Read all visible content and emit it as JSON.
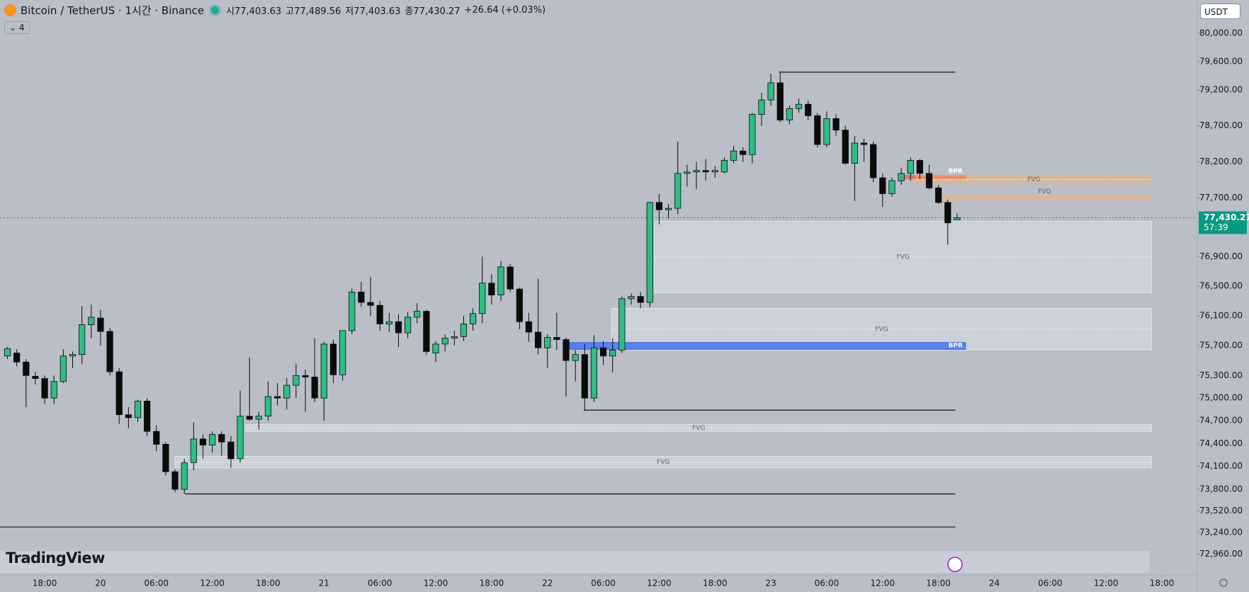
{
  "header": {
    "symbol": "Bitcoin / TetherUS · 1시간 · Binance",
    "ohlc": [
      "시77,403.63",
      "고77,489.56",
      "저77,403.63",
      "종77,430.27"
    ],
    "change": "+26.64 (+0.03%)",
    "indicator_count": "4",
    "currency": "USDT",
    "logo": "TradingView",
    "countdown": "57:39"
  },
  "chart_data": {
    "type": "candlestick",
    "log_scale": true,
    "up_color": "#2ebd85",
    "down_color": "#0b0b0b",
    "xlim": [
      -10.8,
      117.8
    ],
    "ylim": [
      72690,
      80470
    ],
    "xticks": [
      {
        "value": -6,
        "label": "18:00"
      },
      {
        "value": 0,
        "label": "20"
      },
      {
        "value": 6,
        "label": "06:00"
      },
      {
        "value": 12,
        "label": "12:00"
      },
      {
        "value": 18,
        "label": "18:00"
      },
      {
        "value": 24,
        "label": "21"
      },
      {
        "value": 30,
        "label": "06:00"
      },
      {
        "value": 36,
        "label": "12:00"
      },
      {
        "value": 42,
        "label": "18:00"
      },
      {
        "value": 48,
        "label": "22"
      },
      {
        "value": 54,
        "label": "06:00"
      },
      {
        "value": 60,
        "label": "12:00"
      },
      {
        "value": 66,
        "label": "18:00"
      },
      {
        "value": 72,
        "label": "23"
      },
      {
        "value": 78,
        "label": "06:00"
      },
      {
        "value": 84,
        "label": "12:00"
      },
      {
        "value": 90,
        "label": "18:00"
      },
      {
        "value": 96,
        "label": "24"
      },
      {
        "value": 102,
        "label": "06:00"
      },
      {
        "value": 108,
        "label": "12:00"
      },
      {
        "value": 114,
        "label": "18:00"
      }
    ],
    "yticks": [
      {
        "value": 80000,
        "label": "80,000.00"
      },
      {
        "value": 79600,
        "label": "79,600.00"
      },
      {
        "value": 79200,
        "label": "79,200.00"
      },
      {
        "value": 78700,
        "label": "78,700.00"
      },
      {
        "value": 78200,
        "label": "78,200.00"
      },
      {
        "value": 77700,
        "label": "77,700.00"
      },
      {
        "value": 76900,
        "label": "76,900.00"
      },
      {
        "value": 76500,
        "label": "76,500.00"
      },
      {
        "value": 76100,
        "label": "76,100.00"
      },
      {
        "value": 75700,
        "label": "75,700.00"
      },
      {
        "value": 75300,
        "label": "75,300.00"
      },
      {
        "value": 75000,
        "label": "75,000.00"
      },
      {
        "value": 74700,
        "label": "74,700.00"
      },
      {
        "value": 74400,
        "label": "74,400.00"
      },
      {
        "value": 74100,
        "label": "74,100.00"
      },
      {
        "value": 73800,
        "label": "73,800.00"
      },
      {
        "value": 73520,
        "label": "73,520.00"
      },
      {
        "value": 73240,
        "label": "73,240.00"
      },
      {
        "value": 72960,
        "label": "72,960.00"
      }
    ],
    "x": [
      -10,
      -9,
      -8,
      -7,
      -6,
      -5,
      -4,
      -3,
      -2,
      -1,
      0,
      1,
      2,
      3,
      4,
      5,
      6,
      7,
      8,
      9,
      10,
      11,
      12,
      13,
      14,
      15,
      16,
      17,
      18,
      19,
      20,
      21,
      22,
      23,
      24,
      25,
      26,
      27,
      28,
      29,
      30,
      31,
      32,
      33,
      34,
      35,
      36,
      37,
      38,
      39,
      40,
      41,
      42,
      43,
      44,
      45,
      46,
      47,
      48,
      49,
      50,
      51,
      52,
      53,
      54,
      55,
      56,
      57,
      58,
      59,
      60,
      61,
      62,
      63,
      64,
      65,
      66,
      67,
      68,
      69,
      70,
      71,
      72,
      73,
      74,
      75,
      76,
      77,
      78,
      79,
      80,
      81,
      82,
      83,
      84,
      85,
      86,
      87,
      88,
      89,
      90,
      91,
      92
    ],
    "open": [
      75560,
      75600,
      75480,
      75290,
      75260,
      75000,
      75220,
      75560,
      75580,
      75980,
      76070,
      75890,
      75350,
      74780,
      74740,
      74960,
      74560,
      74390,
      74030,
      73800,
      74150,
      74460,
      74380,
      74520,
      74420,
      74200,
      74760,
      74720,
      74760,
      75020,
      75000,
      75170,
      75300,
      75280,
      75000,
      75720,
      75310,
      75900,
      76420,
      76280,
      76240,
      75990,
      76020,
      75870,
      76080,
      76160,
      75600,
      75720,
      75800,
      75820,
      75990,
      76130,
      76540,
      76380,
      76760,
      76460,
      76020,
      75880,
      75670,
      75810,
      75780,
      75500,
      75580,
      75000,
      75670,
      75560,
      75640,
      76330,
      76360,
      76280,
      77640,
      77540,
      77560,
      78040,
      78060,
      78080,
      78060,
      78060,
      78220,
      78350,
      78300,
      78860,
      79060,
      79300,
      78780,
      78940,
      79000,
      78840,
      78440,
      78800,
      78640,
      78180,
      78460,
      78440,
      77980,
      77760,
      77940,
      78040,
      78220,
      78040,
      77840,
      77640,
      77403.63
    ],
    "high": [
      75680,
      75650,
      75520,
      75350,
      75300,
      75300,
      75650,
      75620,
      76230,
      76250,
      76180,
      75940,
      75400,
      74880,
      74980,
      75000,
      74640,
      74420,
      74060,
      74200,
      74680,
      74520,
      74560,
      74560,
      74500,
      75100,
      75540,
      74820,
      75220,
      75200,
      75270,
      75460,
      75380,
      75800,
      75750,
      75780,
      75900,
      76470,
      76560,
      76620,
      76300,
      76140,
      76120,
      76150,
      76270,
      76180,
      75760,
      75850,
      75900,
      76100,
      76200,
      76900,
      76660,
      76840,
      76800,
      76480,
      76140,
      76600,
      75850,
      76140,
      75810,
      75640,
      75720,
      75840,
      75760,
      75800,
      76360,
      76400,
      76420,
      77650,
      77760,
      77620,
      78480,
      78160,
      78200,
      78240,
      78140,
      78260,
      78420,
      78400,
      78880,
      79160,
      79430,
      79460,
      78980,
      79080,
      79050,
      78880,
      78900,
      78860,
      78700,
      78560,
      78520,
      78480,
      78040,
      77980,
      78120,
      78260,
      78240,
      78160,
      77880,
      77680,
      77489.56
    ],
    "low": [
      75520,
      75420,
      74880,
      75180,
      74920,
      74920,
      75200,
      75400,
      75450,
      75800,
      75700,
      75300,
      74660,
      74600,
      74680,
      74500,
      74300,
      73980,
      73760,
      73740,
      74050,
      74200,
      74280,
      74240,
      74080,
      74150,
      74700,
      74580,
      74700,
      74900,
      74850,
      75000,
      74820,
      74950,
      74700,
      75200,
      75230,
      75850,
      76220,
      76100,
      75900,
      75880,
      75680,
      75800,
      76000,
      75580,
      75480,
      75620,
      75700,
      75760,
      75900,
      76000,
      76250,
      76300,
      76420,
      75920,
      75750,
      75580,
      75400,
      75640,
      75020,
      75220,
      74840,
      74950,
      75440,
      75340,
      75600,
      76250,
      76200,
      76220,
      77340,
      77420,
      77480,
      77860,
      77820,
      77940,
      77980,
      78040,
      78180,
      78200,
      78180,
      78700,
      78980,
      78750,
      78720,
      78880,
      78780,
      78400,
      78400,
      78560,
      78160,
      77660,
      78200,
      77920,
      77580,
      77720,
      77880,
      77940,
      77960,
      77820,
      77620,
      77060,
      77403.63
    ],
    "close": [
      75660,
      75480,
      75300,
      75260,
      75000,
      75220,
      75560,
      75580,
      75980,
      76080,
      75890,
      75350,
      74780,
      74740,
      74960,
      74560,
      74390,
      74030,
      73800,
      74150,
      74460,
      74380,
      74520,
      74420,
      74200,
      74760,
      74720,
      74760,
      75020,
      75000,
      75170,
      75300,
      75280,
      75000,
      75720,
      75310,
      75900,
      76420,
      76280,
      76240,
      75990,
      76020,
      75870,
      76080,
      76160,
      75620,
      75720,
      75800,
      75820,
      75990,
      76130,
      76540,
      76380,
      76760,
      76460,
      76020,
      75880,
      75670,
      75810,
      75780,
      75500,
      75580,
      75000,
      75670,
      75560,
      75640,
      76330,
      76360,
      76280,
      77640,
      77540,
      77560,
      78040,
      78060,
      78080,
      78060,
      78080,
      78220,
      78350,
      78300,
      78860,
      79060,
      79300,
      78780,
      78940,
      79000,
      78840,
      78440,
      78800,
      78640,
      78180,
      78460,
      78440,
      77980,
      77760,
      77940,
      78040,
      78220,
      78040,
      77840,
      77640,
      77360,
      77430.27
    ],
    "last_price": 77430.27,
    "last_price_label": "77,430.27",
    "last_price_color": "#089981",
    "zones": [
      {
        "label": "FVG",
        "x": [
          59.5,
          112.9
        ],
        "y": [
          76410,
          77380
        ],
        "fill": "rgba(255,255,255,0.28)",
        "stroke": "rgba(255,255,255,0.5)",
        "midline": true
      },
      {
        "label": "FVG",
        "x": [
          54.9,
          112.9
        ],
        "y": [
          75640,
          76200
        ],
        "fill": "rgba(255,255,255,0.28)",
        "stroke": "rgba(255,255,255,0.5)",
        "midline": true
      },
      {
        "label": "BPR",
        "x": [
          50.4,
          92.9
        ],
        "y": [
          75650,
          75740
        ],
        "fill": "rgba(66,120,245,0.85)",
        "stroke": "#2f62e0",
        "midline": false
      },
      {
        "label": "BPR",
        "x": [
          86.3,
          92.9
        ],
        "y": [
          77970,
          78010
        ],
        "fill": "rgba(238,90,90,0.75)",
        "stroke": "rgba(238,90,90,0.9)",
        "midline": false
      },
      {
        "label": "FVG",
        "x": [
          87.6,
          112.9
        ],
        "y": [
          77900,
          78010
        ],
        "fill": "rgba(255,176,80,0.38)",
        "stroke": "rgba(255,176,80,0.6)",
        "midline": true
      },
      {
        "label": "FVG",
        "x": [
          89.9,
          112.9
        ],
        "y": [
          77690,
          77720
        ],
        "fill": "rgba(255,176,80,0.45)",
        "stroke": "rgba(255,176,80,0.7)",
        "midline": false
      },
      {
        "label": "FVG",
        "x": [
          15.6,
          112.9
        ],
        "y": [
          74560,
          74650
        ],
        "fill": "rgba(255,255,255,0.28)",
        "stroke": "rgba(255,255,255,0.5)",
        "midline": true
      },
      {
        "label": "FVG",
        "x": [
          8.0,
          112.9
        ],
        "y": [
          74080,
          74230
        ],
        "fill": "rgba(255,255,255,0.28)",
        "stroke": "rgba(255,255,255,0.5)",
        "midline": true
      }
    ],
    "levels": [
      {
        "y": 79450,
        "x": [
          72.9,
          91.8
        ]
      },
      {
        "y": 74840,
        "x": [
          51.9,
          91.8
        ]
      },
      {
        "y": 73740,
        "x": [
          9.1,
          91.8
        ]
      },
      {
        "y": 73310,
        "x": [
          -10.8,
          91.8
        ]
      }
    ]
  }
}
